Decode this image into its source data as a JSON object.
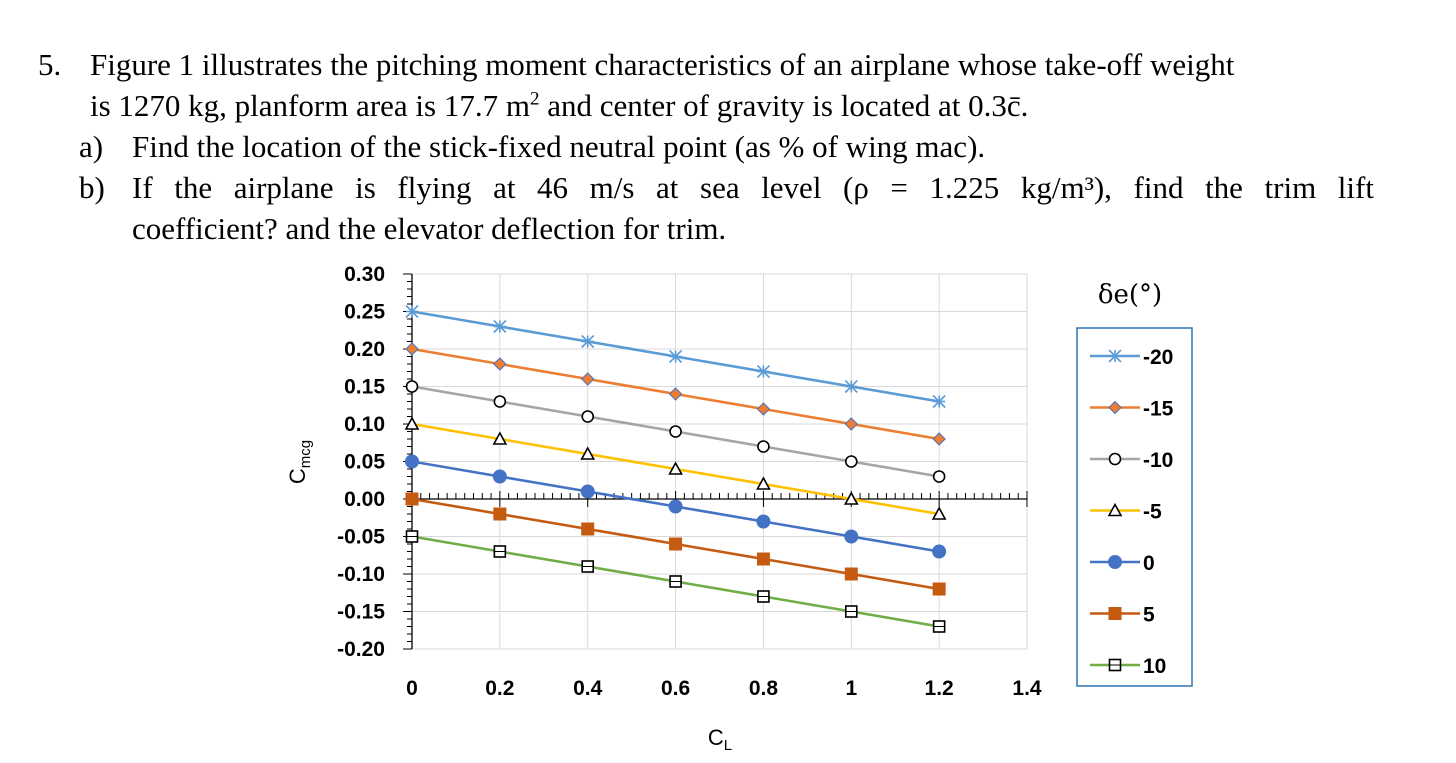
{
  "problem": {
    "number": "5.",
    "line1": "Figure 1 illustrates the pitching moment characteristics of an airplane whose take-off weight",
    "line2_pre": "is 1270 kg, planform area is 17.7 m",
    "line2_sup": "2",
    "line2_post": " and center of gravity is located at 0.3c̄.",
    "part_a_label": "a)",
    "part_a_text": "Find the location of the stick-fixed neutral point (as % of wing mac).",
    "part_b_label": "b)",
    "part_b_words": [
      "If",
      "the",
      "airplane",
      "is",
      "flying",
      "at",
      "46",
      "m/s",
      "at",
      "sea",
      "level",
      "(ρ",
      "=",
      "1.225",
      "kg/m³),",
      "find",
      "the",
      "trim",
      "lift"
    ],
    "part_b_line2": "coefficient? and the elevator deflection for trim."
  },
  "chart_data": {
    "type": "line",
    "xlabel": "C_L",
    "ylabel": "C_mcg",
    "xlim": [
      0,
      1.4
    ],
    "ylim": [
      -0.2,
      0.3
    ],
    "x_ticks": [
      "0",
      "0.2",
      "0.4",
      "0.6",
      "0.8",
      "1",
      "1.2",
      "1.4"
    ],
    "y_ticks": [
      "0.30",
      "0.25",
      "0.20",
      "0.15",
      "0.10",
      "0.05",
      "0.00",
      "-0.05",
      "-0.10",
      "-0.15",
      "-0.20"
    ],
    "grid": true,
    "legend_title": "δe(°)",
    "legend_position": "right",
    "x": [
      0,
      0.2,
      0.4,
      0.6,
      0.8,
      1.0,
      1.2
    ],
    "series": [
      {
        "name": "-20",
        "color": "#5B9BD5",
        "marker": "star",
        "values": [
          0.25,
          0.23,
          0.21,
          0.19,
          0.17,
          0.15,
          0.13
        ]
      },
      {
        "name": "-15",
        "color": "#ED7D31",
        "marker": "diamond",
        "values": [
          0.2,
          0.18,
          0.16,
          0.14,
          0.12,
          0.1,
          0.08
        ]
      },
      {
        "name": "-10",
        "color": "#A5A5A5",
        "marker": "circle-open",
        "values": [
          0.15,
          0.13,
          0.11,
          0.09,
          0.07,
          0.05,
          0.03
        ]
      },
      {
        "name": "-5",
        "color": "#FFC000",
        "marker": "triangle-open",
        "values": [
          0.1,
          0.08,
          0.06,
          0.04,
          0.02,
          0.0,
          -0.02
        ]
      },
      {
        "name": "0",
        "color": "#4472C4",
        "marker": "circle",
        "values": [
          0.05,
          0.03,
          0.01,
          -0.01,
          -0.03,
          -0.05,
          -0.07
        ]
      },
      {
        "name": "5",
        "color": "#C55A11",
        "marker": "square",
        "values": [
          0.0,
          -0.02,
          -0.04,
          -0.06,
          -0.08,
          -0.1,
          -0.12
        ]
      },
      {
        "name": "10",
        "color": "#70AD47",
        "marker": "square-open",
        "values": [
          -0.05,
          -0.07,
          -0.09,
          -0.11,
          -0.13,
          -0.15,
          -0.17
        ]
      }
    ]
  }
}
